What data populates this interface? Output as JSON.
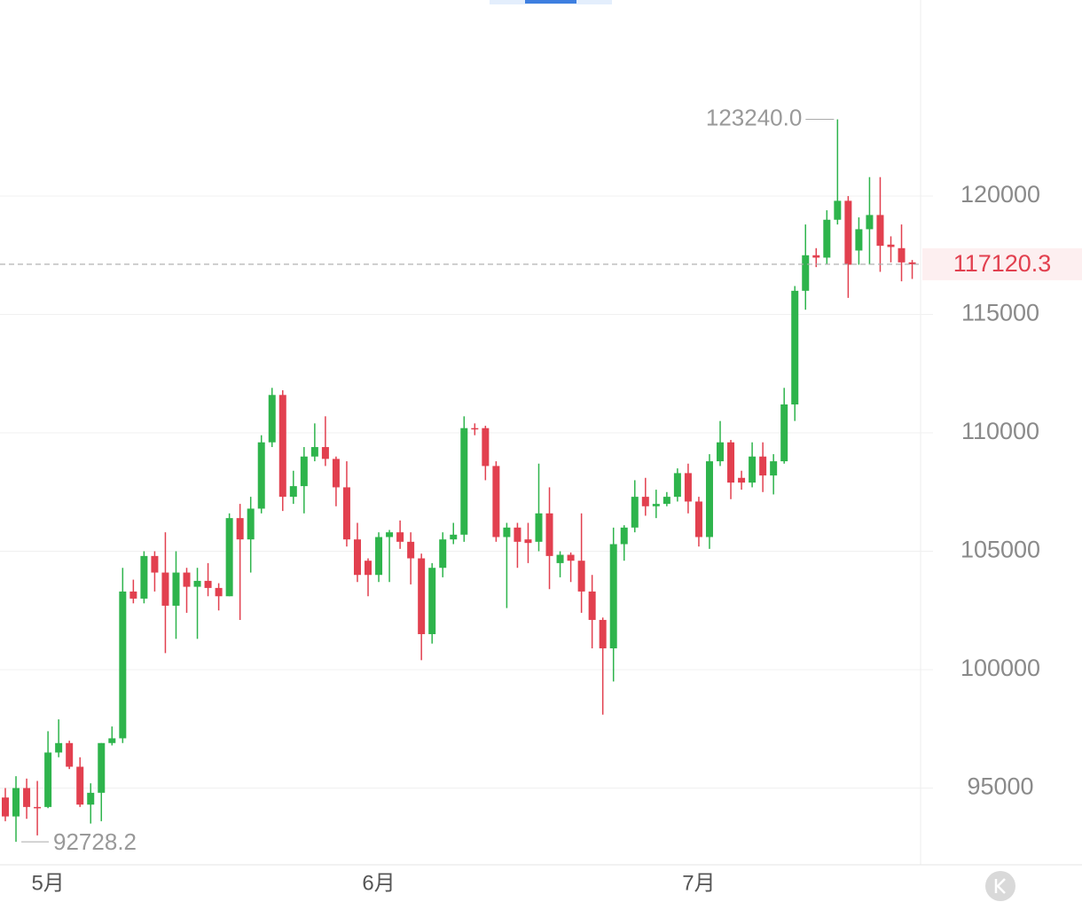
{
  "chart_data": {
    "type": "candlestick",
    "categories": [
      null,
      null,
      null,
      null,
      "5月",
      null,
      null,
      null,
      null,
      null,
      null,
      null,
      null,
      null,
      null,
      null,
      null,
      null,
      null,
      null,
      null,
      null,
      null,
      null,
      null,
      null,
      null,
      null,
      null,
      null,
      null,
      null,
      null,
      null,
      null,
      "6月",
      null,
      null,
      null,
      null,
      null,
      null,
      null,
      null,
      null,
      null,
      null,
      null,
      null,
      null,
      null,
      null,
      null,
      null,
      null,
      null,
      null,
      null,
      null,
      null,
      null,
      null,
      null,
      null,
      null,
      "7月",
      null,
      null,
      null,
      null,
      null,
      null,
      null,
      null,
      null,
      null,
      null,
      null,
      null,
      null,
      null,
      null,
      null,
      null,
      null,
      null
    ],
    "open": [
      94600,
      93800,
      95000,
      94200,
      94200,
      96500,
      96900,
      95900,
      94300,
      94800,
      96900,
      97100,
      103300,
      103000,
      104800,
      104100,
      102700,
      104100,
      103500,
      103750,
      103450,
      103100,
      106400,
      105500,
      106800,
      109600,
      111600,
      107300,
      107750,
      109000,
      109400,
      108900,
      107700,
      105500,
      104600,
      104000,
      105600,
      105800,
      105400,
      104700,
      101500,
      104300,
      105500,
      105700,
      110200,
      110200,
      108600,
      105600,
      106000,
      105500,
      105400,
      106600,
      104500,
      104850,
      104600,
      103300,
      102100,
      100900,
      105300,
      106000,
      107300,
      106900,
      107000,
      107300,
      108300,
      107100,
      105600,
      108800,
      109600,
      108100,
      107900,
      109000,
      108200,
      108800,
      111200,
      116000,
      117500,
      117400,
      119000,
      119800,
      117700,
      118600,
      119200,
      117950,
      117800,
      117200
    ],
    "high": [
      95000,
      95500,
      95400,
      95300,
      97400,
      97900,
      97000,
      96300,
      95200,
      96900,
      97600,
      104300,
      103800,
      105000,
      105000,
      105800,
      105000,
      104300,
      104300,
      104500,
      103650,
      106600,
      107000,
      107300,
      109900,
      111900,
      111800,
      108400,
      109400,
      110400,
      110700,
      109000,
      108800,
      106200,
      104700,
      105800,
      105900,
      106300,
      105800,
      104900,
      104500,
      105800,
      106200,
      110700,
      110400,
      110300,
      108800,
      106200,
      106200,
      106200,
      108700,
      107700,
      105000,
      104950,
      106600,
      104000,
      102200,
      106000,
      106100,
      108000,
      108100,
      107600,
      107500,
      108500,
      108700,
      107300,
      109100,
      110500,
      109700,
      108400,
      109600,
      109600,
      109100,
      111900,
      116200,
      118800,
      117800,
      119400,
      123240,
      120000,
      119100,
      120800,
      120800,
      118300,
      118800,
      117300
    ],
    "low": [
      93600,
      92728.2,
      93700,
      93000,
      94150,
      96300,
      95800,
      94200,
      93500,
      93600,
      96800,
      96900,
      102800,
      102800,
      103300,
      100700,
      101300,
      102400,
      101300,
      103100,
      102500,
      103100,
      102100,
      104100,
      106600,
      109400,
      106700,
      107000,
      106600,
      108800,
      108600,
      106900,
      105200,
      103700,
      103100,
      103700,
      103700,
      105100,
      103600,
      100400,
      101100,
      103900,
      105300,
      105400,
      109900,
      108000,
      105400,
      102600,
      104300,
      104500,
      105000,
      103400,
      103900,
      103700,
      102400,
      100900,
      98100,
      99500,
      104600,
      105800,
      106500,
      106400,
      106900,
      107100,
      106600,
      105200,
      105100,
      108600,
      107200,
      107600,
      107700,
      107500,
      107400,
      108700,
      110500,
      115200,
      117000,
      117100,
      118800,
      115700,
      117100,
      117100,
      116800,
      117200,
      116400,
      116500
    ],
    "close": [
      93800,
      95000,
      94200,
      94150,
      96500,
      96900,
      95900,
      94300,
      94800,
      96900,
      97100,
      103300,
      103000,
      104800,
      104100,
      102700,
      104100,
      103500,
      103750,
      103450,
      103100,
      106400,
      105500,
      106800,
      109600,
      111600,
      107300,
      107750,
      109000,
      109400,
      108900,
      107700,
      105500,
      104000,
      104000,
      105600,
      105800,
      105400,
      104700,
      101500,
      104300,
      105500,
      105700,
      110200,
      110150,
      108600,
      105600,
      106000,
      105400,
      105350,
      106600,
      104800,
      104850,
      104600,
      103300,
      102100,
      100900,
      105300,
      106000,
      107300,
      106900,
      107000,
      107300,
      108300,
      107100,
      105600,
      108800,
      109600,
      107900,
      107900,
      109000,
      108200,
      108800,
      111200,
      116000,
      117500,
      117400,
      119000,
      119800,
      117100,
      118600,
      119200,
      117900,
      117850,
      117200,
      117120.3
    ],
    "up_color": "#2eb44c",
    "down_color": "#e2404f",
    "ylim": [
      91760,
      128280
    ],
    "yticks": [
      95000,
      100000,
      105000,
      110000,
      115000,
      120000
    ],
    "grid": true,
    "max_label": {
      "value": 123240,
      "label": "123240.0"
    },
    "min_label": 92728.2,
    "last_price": 117120.3
  }
}
